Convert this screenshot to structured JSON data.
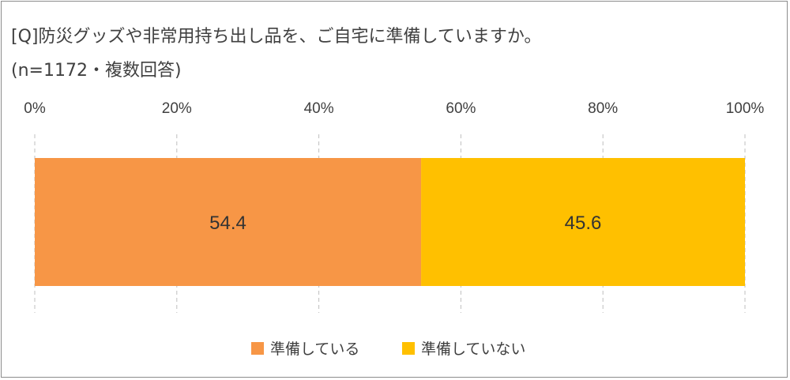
{
  "header": {
    "title": "[Q]防災グッズや非常用持ち出し品を、ご自宅に準備していますか。",
    "subtitle": "(n=1172・複数回答)"
  },
  "colors": {
    "series_1": "#f79646",
    "series_2": "#ffc000",
    "gridline": "#bfbfbf",
    "text": "#404040"
  },
  "chart_data": {
    "type": "bar",
    "orientation": "horizontal-stacked-100",
    "title": "[Q]防災グッズや非常用持ち出し品を、ご自宅に準備していますか。",
    "subtitle": "(n=1172・複数回答)",
    "x_ticks": [
      "0%",
      "20%",
      "40%",
      "60%",
      "80%",
      "100%"
    ],
    "xlim": [
      0,
      100
    ],
    "grid": true,
    "legend_position": "bottom",
    "series": [
      {
        "name": "準備している",
        "value": 54.4,
        "label": "54.4",
        "color": "#f79646"
      },
      {
        "name": "準備していない",
        "value": 45.6,
        "label": "45.6",
        "color": "#ffc000"
      }
    ]
  }
}
